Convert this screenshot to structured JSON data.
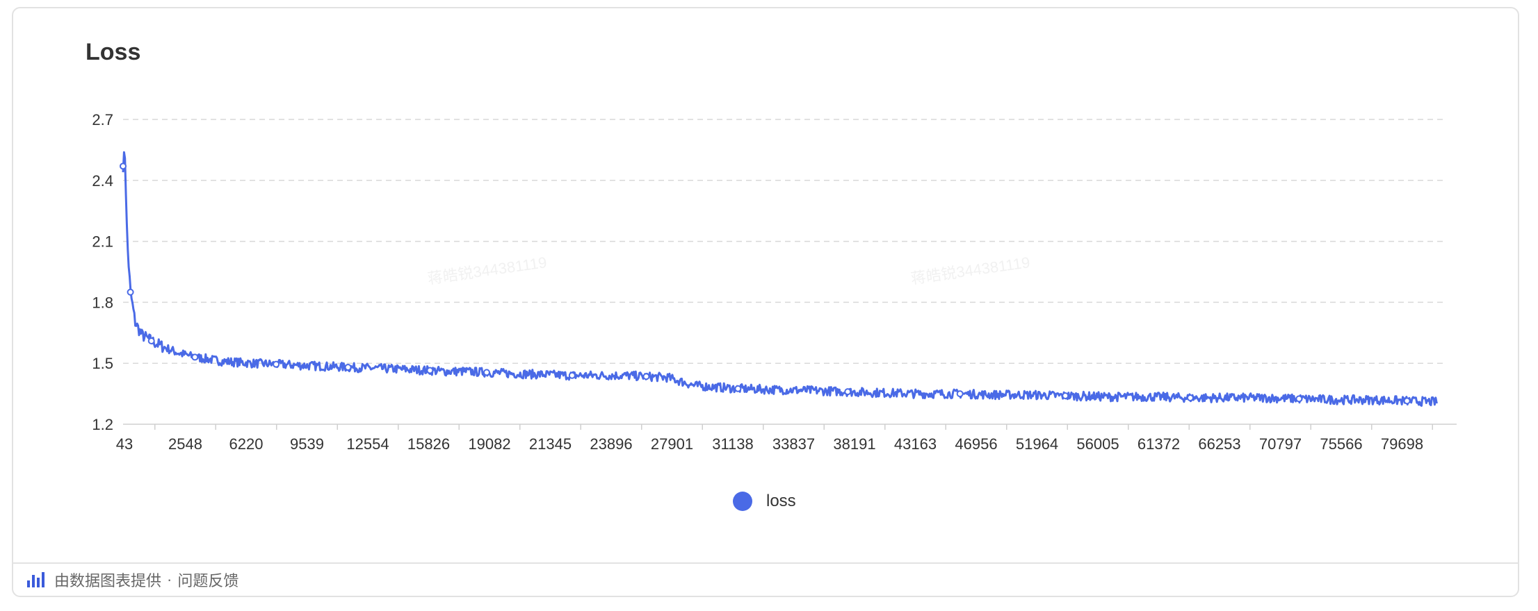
{
  "chart_data": {
    "type": "line",
    "title": "Loss",
    "xlabel": "",
    "ylabel": "",
    "x_tick_labels": [
      "43",
      "2548",
      "6220",
      "9539",
      "12554",
      "15826",
      "19082",
      "21345",
      "23896",
      "27901",
      "31138",
      "33837",
      "38191",
      "43163",
      "46956",
      "51964",
      "56005",
      "61372",
      "66253",
      "70797",
      "75566",
      "79698"
    ],
    "y_ticks": [
      "1.2",
      "1.5",
      "1.8",
      "2.1",
      "2.4",
      "2.7"
    ],
    "ylim": [
      1.2,
      2.7
    ],
    "xlim": [
      43,
      82000
    ],
    "grid": "horizontal-dashed",
    "legend_position": "bottom-center",
    "series": [
      {
        "name": "loss",
        "color": "#4a6ae6",
        "x": [
          43,
          150,
          300,
          500,
          800,
          1200,
          1800,
          2548,
          3500,
          4500,
          6220,
          8000,
          9539,
          11000,
          12554,
          14000,
          15826,
          17500,
          19082,
          20000,
          21345,
          22600,
          23896,
          26000,
          27901,
          29500,
          31138,
          32500,
          33837,
          35500,
          38191,
          40500,
          43163,
          45000,
          46956,
          49500,
          51964,
          54000,
          56005,
          58500,
          61372,
          64000,
          66253,
          68500,
          70797,
          73000,
          75566,
          77500,
          79698,
          81500
        ],
        "y": [
          2.47,
          2.55,
          2.1,
          1.85,
          1.7,
          1.64,
          1.61,
          1.58,
          1.55,
          1.53,
          1.51,
          1.5,
          1.495,
          1.49,
          1.485,
          1.48,
          1.475,
          1.47,
          1.465,
          1.46,
          1.46,
          1.455,
          1.45,
          1.445,
          1.44,
          1.44,
          1.44,
          1.435,
          1.43,
          1.39,
          1.375,
          1.37,
          1.365,
          1.36,
          1.355,
          1.35,
          1.35,
          1.345,
          1.345,
          1.34,
          1.335,
          1.335,
          1.33,
          1.33,
          1.33,
          1.325,
          1.32,
          1.32,
          1.315,
          1.31
        ]
      }
    ]
  },
  "legend": {
    "label": "loss"
  },
  "footer": {
    "provider_text": "由数据图表提供",
    "separator": "·",
    "feedback_text": "问题反馈"
  },
  "watermark": {
    "text": "蒋皓锐344381119"
  }
}
